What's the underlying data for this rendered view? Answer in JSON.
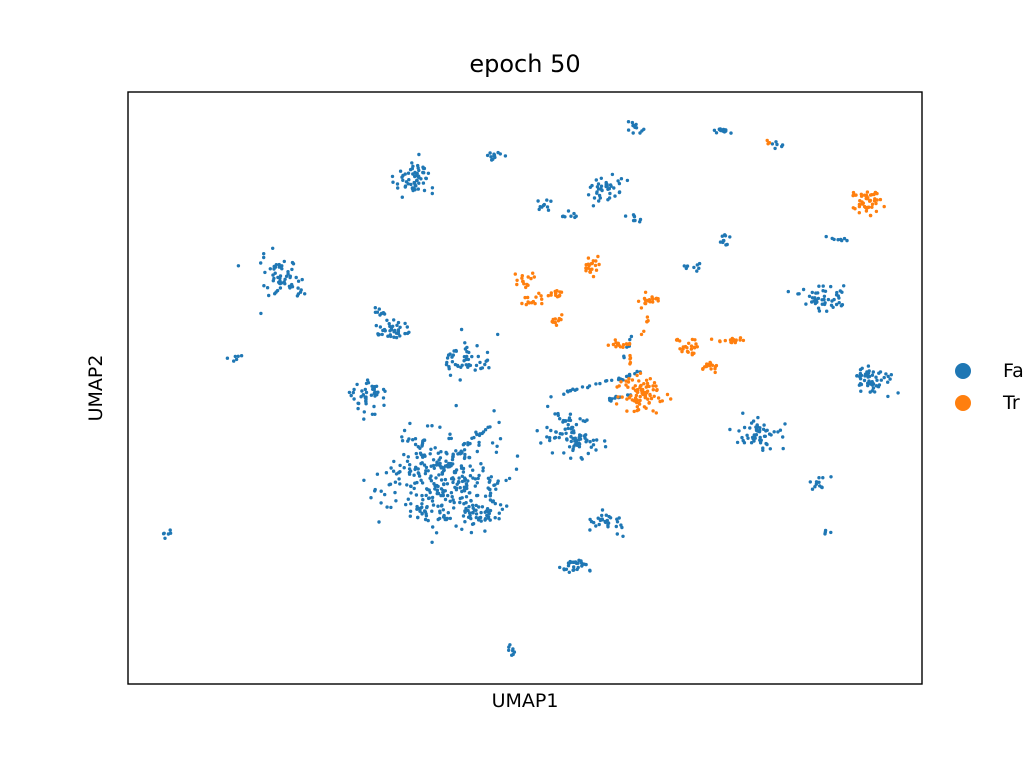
{
  "chart_data": {
    "type": "scatter",
    "title": "epoch 50",
    "xlabel": "UMAP1",
    "ylabel": "UMAP2",
    "xlim": [
      0,
      100
    ],
    "ylim": [
      0,
      100
    ],
    "xticks": [],
    "yticks": [],
    "grid": false,
    "legend_position": "right outside",
    "series": [
      {
        "name": "Fa",
        "color": "#1f77b4",
        "clusters": [
          {
            "cx": 35.9,
            "cy": 85.0,
            "sx": 1.2,
            "sy": 1.8,
            "n": 60
          },
          {
            "cx": 46.0,
            "cy": 89.2,
            "sx": 0.7,
            "sy": 0.4,
            "n": 12
          },
          {
            "cx": 64.0,
            "cy": 94.0,
            "sx": 0.6,
            "sy": 0.5,
            "n": 14
          },
          {
            "cx": 75.0,
            "cy": 93.3,
            "sx": 0.6,
            "sy": 0.4,
            "n": 14
          },
          {
            "cx": 81.4,
            "cy": 91.1,
            "sx": 0.4,
            "sy": 0.3,
            "n": 6
          },
          {
            "cx": 60.6,
            "cy": 83.5,
            "sx": 1.1,
            "sy": 1.3,
            "n": 40
          },
          {
            "cx": 52.4,
            "cy": 81.0,
            "sx": 0.5,
            "sy": 0.5,
            "n": 10
          },
          {
            "cx": 55.5,
            "cy": 79.1,
            "sx": 0.7,
            "sy": 0.3,
            "n": 8
          },
          {
            "cx": 63.8,
            "cy": 78.4,
            "sx": 0.8,
            "sy": 0.4,
            "n": 8
          },
          {
            "cx": 75.3,
            "cy": 75.1,
            "sx": 0.4,
            "sy": 0.5,
            "n": 10
          },
          {
            "cx": 89.7,
            "cy": 75.0,
            "sx": 0.6,
            "sy": 0.3,
            "n": 8
          },
          {
            "cx": 71.1,
            "cy": 70.5,
            "sx": 0.6,
            "sy": 0.4,
            "n": 8
          },
          {
            "cx": 19.5,
            "cy": 68.0,
            "sx": 1.4,
            "sy": 1.8,
            "n": 60
          },
          {
            "cx": 87.3,
            "cy": 65.0,
            "sx": 1.3,
            "sy": 1.1,
            "n": 50
          },
          {
            "cx": 33.0,
            "cy": 60.0,
            "sx": 1.2,
            "sy": 0.7,
            "n": 40
          },
          {
            "cx": 42.6,
            "cy": 54.6,
            "sx": 1.6,
            "sy": 1.6,
            "n": 50
          },
          {
            "cx": 31.5,
            "cy": 62.6,
            "sx": 0.4,
            "sy": 0.6,
            "n": 8
          },
          {
            "cx": 13.8,
            "cy": 55.0,
            "sx": 0.5,
            "sy": 0.4,
            "n": 6
          },
          {
            "cx": 30.5,
            "cy": 48.5,
            "sx": 1.2,
            "sy": 1.5,
            "n": 45
          },
          {
            "cx": 93.5,
            "cy": 51.4,
            "sx": 1.3,
            "sy": 1.2,
            "n": 55
          },
          {
            "cx": 55.9,
            "cy": 42.0,
            "sx": 2.0,
            "sy": 2.0,
            "n": 80
          },
          {
            "cx": 39.0,
            "cy": 35.0,
            "sx": 3.2,
            "sy": 3.8,
            "n": 280
          },
          {
            "cx": 45.1,
            "cy": 32.0,
            "sx": 1.6,
            "sy": 1.8,
            "n": 40
          },
          {
            "cx": 44.6,
            "cy": 29.0,
            "sx": 1.3,
            "sy": 1.0,
            "n": 30
          },
          {
            "cx": 39.0,
            "cy": 29.0,
            "sx": 1.5,
            "sy": 1.0,
            "n": 30
          },
          {
            "cx": 79.7,
            "cy": 42.5,
            "sx": 1.6,
            "sy": 1.4,
            "n": 55
          },
          {
            "cx": 87.0,
            "cy": 34.1,
            "sx": 0.5,
            "sy": 1.0,
            "n": 12
          },
          {
            "cx": 60.2,
            "cy": 27.5,
            "sx": 1.0,
            "sy": 1.0,
            "n": 30
          },
          {
            "cx": 56.0,
            "cy": 20.0,
            "sx": 0.9,
            "sy": 0.7,
            "n": 30
          },
          {
            "cx": 88.0,
            "cy": 25.7,
            "sx": 0.3,
            "sy": 0.3,
            "n": 4
          },
          {
            "cx": 4.8,
            "cy": 25.4,
            "sx": 0.5,
            "sy": 0.3,
            "n": 6
          },
          {
            "cx": 48.4,
            "cy": 5.5,
            "sx": 0.4,
            "sy": 0.5,
            "n": 8
          }
        ],
        "trails": [
          {
            "x": [
              41.0,
              44.0,
              47.0
            ],
            "y": [
              38.0,
              42.0,
              44.6
            ],
            "n": 22
          },
          {
            "x": [
              53.0,
              57.0,
              62.0,
              65.0
            ],
            "y": [
              48.5,
              50.0,
              51.5,
              53.0
            ],
            "n": 30
          },
          {
            "x": [
              62.4,
              63.0,
              63.8
            ],
            "y": [
              55.0,
              57.5,
              60.0
            ],
            "n": 8
          },
          {
            "x": [
              60.5,
              62.0,
              63.5
            ],
            "y": [
              48.0,
              48.5,
              49.0
            ],
            "n": 10
          },
          {
            "x": [
              52.0,
              53.5,
              55.5
            ],
            "y": [
              48.0,
              46.0,
              44.0
            ],
            "n": 8
          }
        ]
      },
      {
        "name": "Tr",
        "color": "#ff7f0e",
        "clusters": [
          {
            "cx": 93.3,
            "cy": 81.5,
            "sx": 0.9,
            "sy": 1.0,
            "n": 50
          },
          {
            "cx": 80.6,
            "cy": 91.2,
            "sx": 0.3,
            "sy": 0.3,
            "n": 3
          },
          {
            "cx": 58.5,
            "cy": 70.7,
            "sx": 0.5,
            "sy": 0.8,
            "n": 20
          },
          {
            "cx": 49.9,
            "cy": 68.0,
            "sx": 0.6,
            "sy": 0.8,
            "n": 15
          },
          {
            "cx": 51.3,
            "cy": 65.0,
            "sx": 1.0,
            "sy": 0.6,
            "n": 15
          },
          {
            "cx": 54.0,
            "cy": 66.0,
            "sx": 0.5,
            "sy": 0.6,
            "n": 12
          },
          {
            "cx": 54.0,
            "cy": 61.5,
            "sx": 0.5,
            "sy": 0.4,
            "n": 10
          },
          {
            "cx": 65.8,
            "cy": 64.5,
            "sx": 0.7,
            "sy": 0.5,
            "n": 20
          },
          {
            "cx": 61.9,
            "cy": 57.3,
            "sx": 0.9,
            "sy": 0.4,
            "n": 15
          },
          {
            "cx": 64.6,
            "cy": 49.0,
            "sx": 1.6,
            "sy": 1.4,
            "n": 90
          },
          {
            "cx": 70.5,
            "cy": 57.0,
            "sx": 0.8,
            "sy": 0.5,
            "n": 15
          },
          {
            "cx": 76.3,
            "cy": 58.0,
            "sx": 0.6,
            "sy": 0.4,
            "n": 12
          },
          {
            "cx": 73.2,
            "cy": 53.5,
            "sx": 0.7,
            "sy": 0.4,
            "n": 14
          }
        ],
        "trails": [
          {
            "x": [
              65.8,
              65.3,
              64.8
            ],
            "y": [
              63.0,
              61.0,
              59.0
            ],
            "n": 6
          },
          {
            "x": [
              62.8,
              63.4,
              64.2
            ],
            "y": [
              56.0,
              54.0,
              52.0
            ],
            "n": 6
          },
          {
            "x": [
              69.0,
              71.5,
              74.5,
              77.0
            ],
            "y": [
              58.0,
              58.3,
              58.1,
              58.0
            ],
            "n": 12
          },
          {
            "x": [
              71.0,
              72.5,
              73.5
            ],
            "y": [
              56.0,
              55.0,
              54.0
            ],
            "n": 5
          }
        ]
      }
    ]
  }
}
